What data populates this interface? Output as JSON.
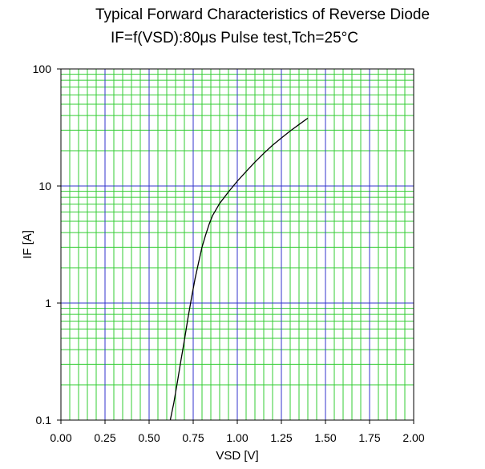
{
  "chart_data": {
    "type": "line",
    "title": "Typical Forward Characteristics of Reverse Diode",
    "subtitle": "IF=f(VSD):80μs Pulse test,Tch=25°C",
    "xlabel": "VSD [V]",
    "ylabel": "IF [A]",
    "xlim": [
      0,
      2
    ],
    "ylim": [
      0.1,
      100
    ],
    "yscale": "log",
    "grid": true,
    "x_ticks": [
      "0.00",
      "0.25",
      "0.50",
      "0.75",
      "1.00",
      "1.25",
      "1.50",
      "1.75",
      "2.00"
    ],
    "y_ticks": [
      "0.1",
      "1",
      "10",
      "100"
    ],
    "series": [
      {
        "x": [
          0.62,
          0.64,
          0.66,
          0.68,
          0.7,
          0.72,
          0.74,
          0.76,
          0.78,
          0.8,
          0.82,
          0.84,
          0.86,
          0.9,
          0.95,
          1.0,
          1.05,
          1.1,
          1.15,
          1.2,
          1.25,
          1.3,
          1.35,
          1.4
        ],
        "y": [
          0.1,
          0.14,
          0.21,
          0.32,
          0.48,
          0.74,
          1.1,
          1.6,
          2.2,
          3.0,
          3.8,
          4.7,
          5.6,
          7.1,
          8.9,
          11.0,
          13.3,
          16.0,
          19.0,
          22.3,
          25.7,
          29.5,
          33.5,
          38.0
        ],
        "color": "#000000"
      }
    ],
    "colors": {
      "minor_grid": "#33cc33",
      "major_grid": "#3333cc",
      "plot_border": "#000000"
    }
  }
}
